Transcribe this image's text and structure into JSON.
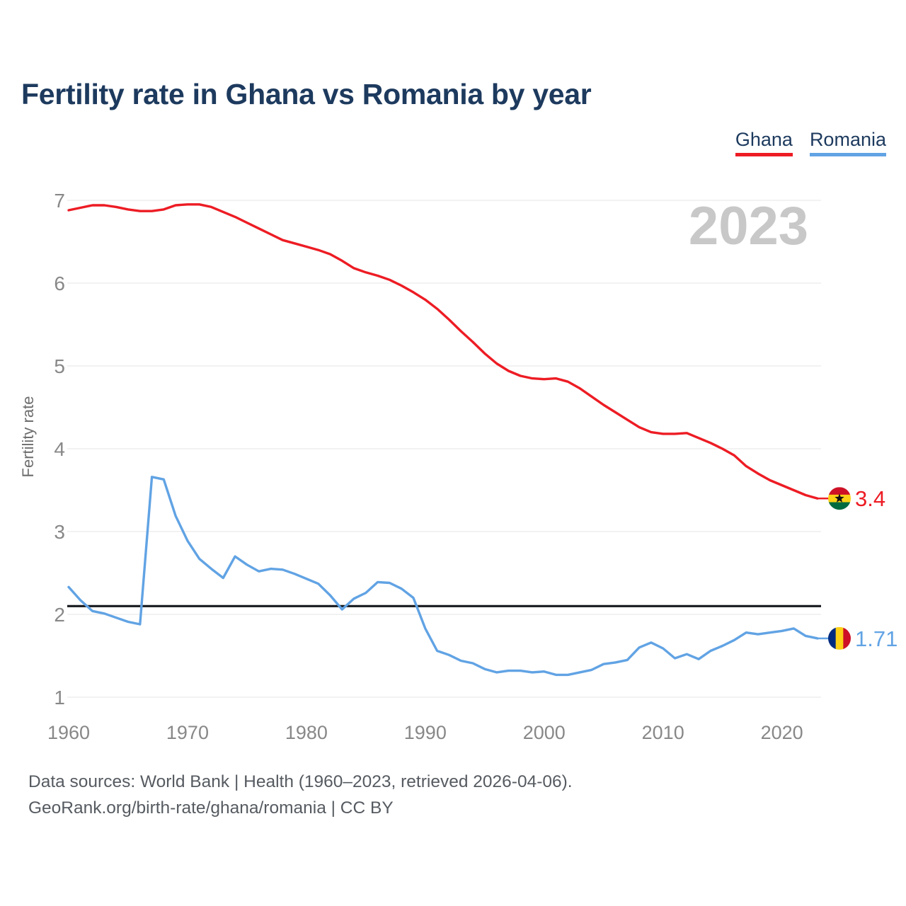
{
  "header": {
    "title": "Fertility rate in Ghana vs Romania by year"
  },
  "legend": {
    "items": [
      {
        "label": "Ghana",
        "color": "#ed1c24"
      },
      {
        "label": "Romania",
        "color": "#61a3e4"
      }
    ]
  },
  "chart_data": {
    "type": "line",
    "title": "Fertility rate in Ghana vs Romania by year",
    "xlabel": "",
    "ylabel": "Fertility rate",
    "watermark": "2023",
    "grid": true,
    "legend_position": "top-right",
    "xlim": [
      1960,
      2023
    ],
    "ylim": [
      1,
      7
    ],
    "x_ticks": [
      1960,
      1970,
      1980,
      1990,
      2000,
      2010,
      2020
    ],
    "y_ticks": [
      1,
      2,
      3,
      4,
      5,
      6,
      7
    ],
    "reference_line": {
      "value": 2.1,
      "color": "#16191d"
    },
    "years": [
      1960,
      1961,
      1962,
      1963,
      1964,
      1965,
      1966,
      1967,
      1968,
      1969,
      1970,
      1971,
      1972,
      1973,
      1974,
      1975,
      1976,
      1977,
      1978,
      1979,
      1980,
      1981,
      1982,
      1983,
      1984,
      1985,
      1986,
      1987,
      1988,
      1989,
      1990,
      1991,
      1992,
      1993,
      1994,
      1995,
      1996,
      1997,
      1998,
      1999,
      2000,
      2001,
      2002,
      2003,
      2004,
      2005,
      2006,
      2007,
      2008,
      2009,
      2010,
      2011,
      2012,
      2013,
      2014,
      2015,
      2016,
      2017,
      2018,
      2019,
      2020,
      2021,
      2022,
      2023
    ],
    "series": [
      {
        "name": "Ghana",
        "color": "#ed1c24",
        "end_label": "3.4",
        "flag_layout": "horizontal",
        "flag_colors": [
          "#ce1126",
          "#fcd116",
          "#006b3f"
        ],
        "flag_star_color": "#111111",
        "values": [
          6.88,
          6.91,
          6.94,
          6.94,
          6.92,
          6.89,
          6.87,
          6.87,
          6.89,
          6.94,
          6.95,
          6.95,
          6.92,
          6.86,
          6.8,
          6.73,
          6.66,
          6.59,
          6.52,
          6.48,
          6.44,
          6.4,
          6.35,
          6.27,
          6.18,
          6.13,
          6.09,
          6.04,
          5.97,
          5.89,
          5.8,
          5.69,
          5.56,
          5.42,
          5.29,
          5.15,
          5.03,
          4.94,
          4.88,
          4.85,
          4.84,
          4.85,
          4.81,
          4.73,
          4.63,
          4.53,
          4.44,
          4.35,
          4.26,
          4.2,
          4.18,
          4.18,
          4.19,
          4.13,
          4.07,
          4.0,
          3.92,
          3.79,
          3.7,
          3.62,
          3.56,
          3.5,
          3.44,
          3.4
        ]
      },
      {
        "name": "Romania",
        "color": "#61a3e4",
        "end_label": "1.71",
        "flag_layout": "vertical",
        "flag_colors": [
          "#002b7f",
          "#fcd116",
          "#ce1126"
        ],
        "values": [
          2.33,
          2.17,
          2.04,
          2.01,
          1.96,
          1.91,
          1.88,
          3.66,
          3.63,
          3.19,
          2.89,
          2.67,
          2.55,
          2.44,
          2.7,
          2.6,
          2.52,
          2.55,
          2.54,
          2.49,
          2.43,
          2.37,
          2.23,
          2.06,
          2.19,
          2.26,
          2.39,
          2.38,
          2.31,
          2.2,
          1.83,
          1.56,
          1.51,
          1.44,
          1.41,
          1.34,
          1.3,
          1.32,
          1.32,
          1.3,
          1.31,
          1.27,
          1.27,
          1.3,
          1.33,
          1.4,
          1.42,
          1.45,
          1.6,
          1.66,
          1.59,
          1.47,
          1.52,
          1.46,
          1.56,
          1.62,
          1.69,
          1.78,
          1.76,
          1.78,
          1.8,
          1.83,
          1.74,
          1.71
        ]
      }
    ]
  },
  "footer": {
    "line1": "Data sources: World Bank | Health (1960–2023, retrieved 2026-04-06).",
    "line2": "GeoRank.org/birth-rate/ghana/romania | CC BY"
  }
}
